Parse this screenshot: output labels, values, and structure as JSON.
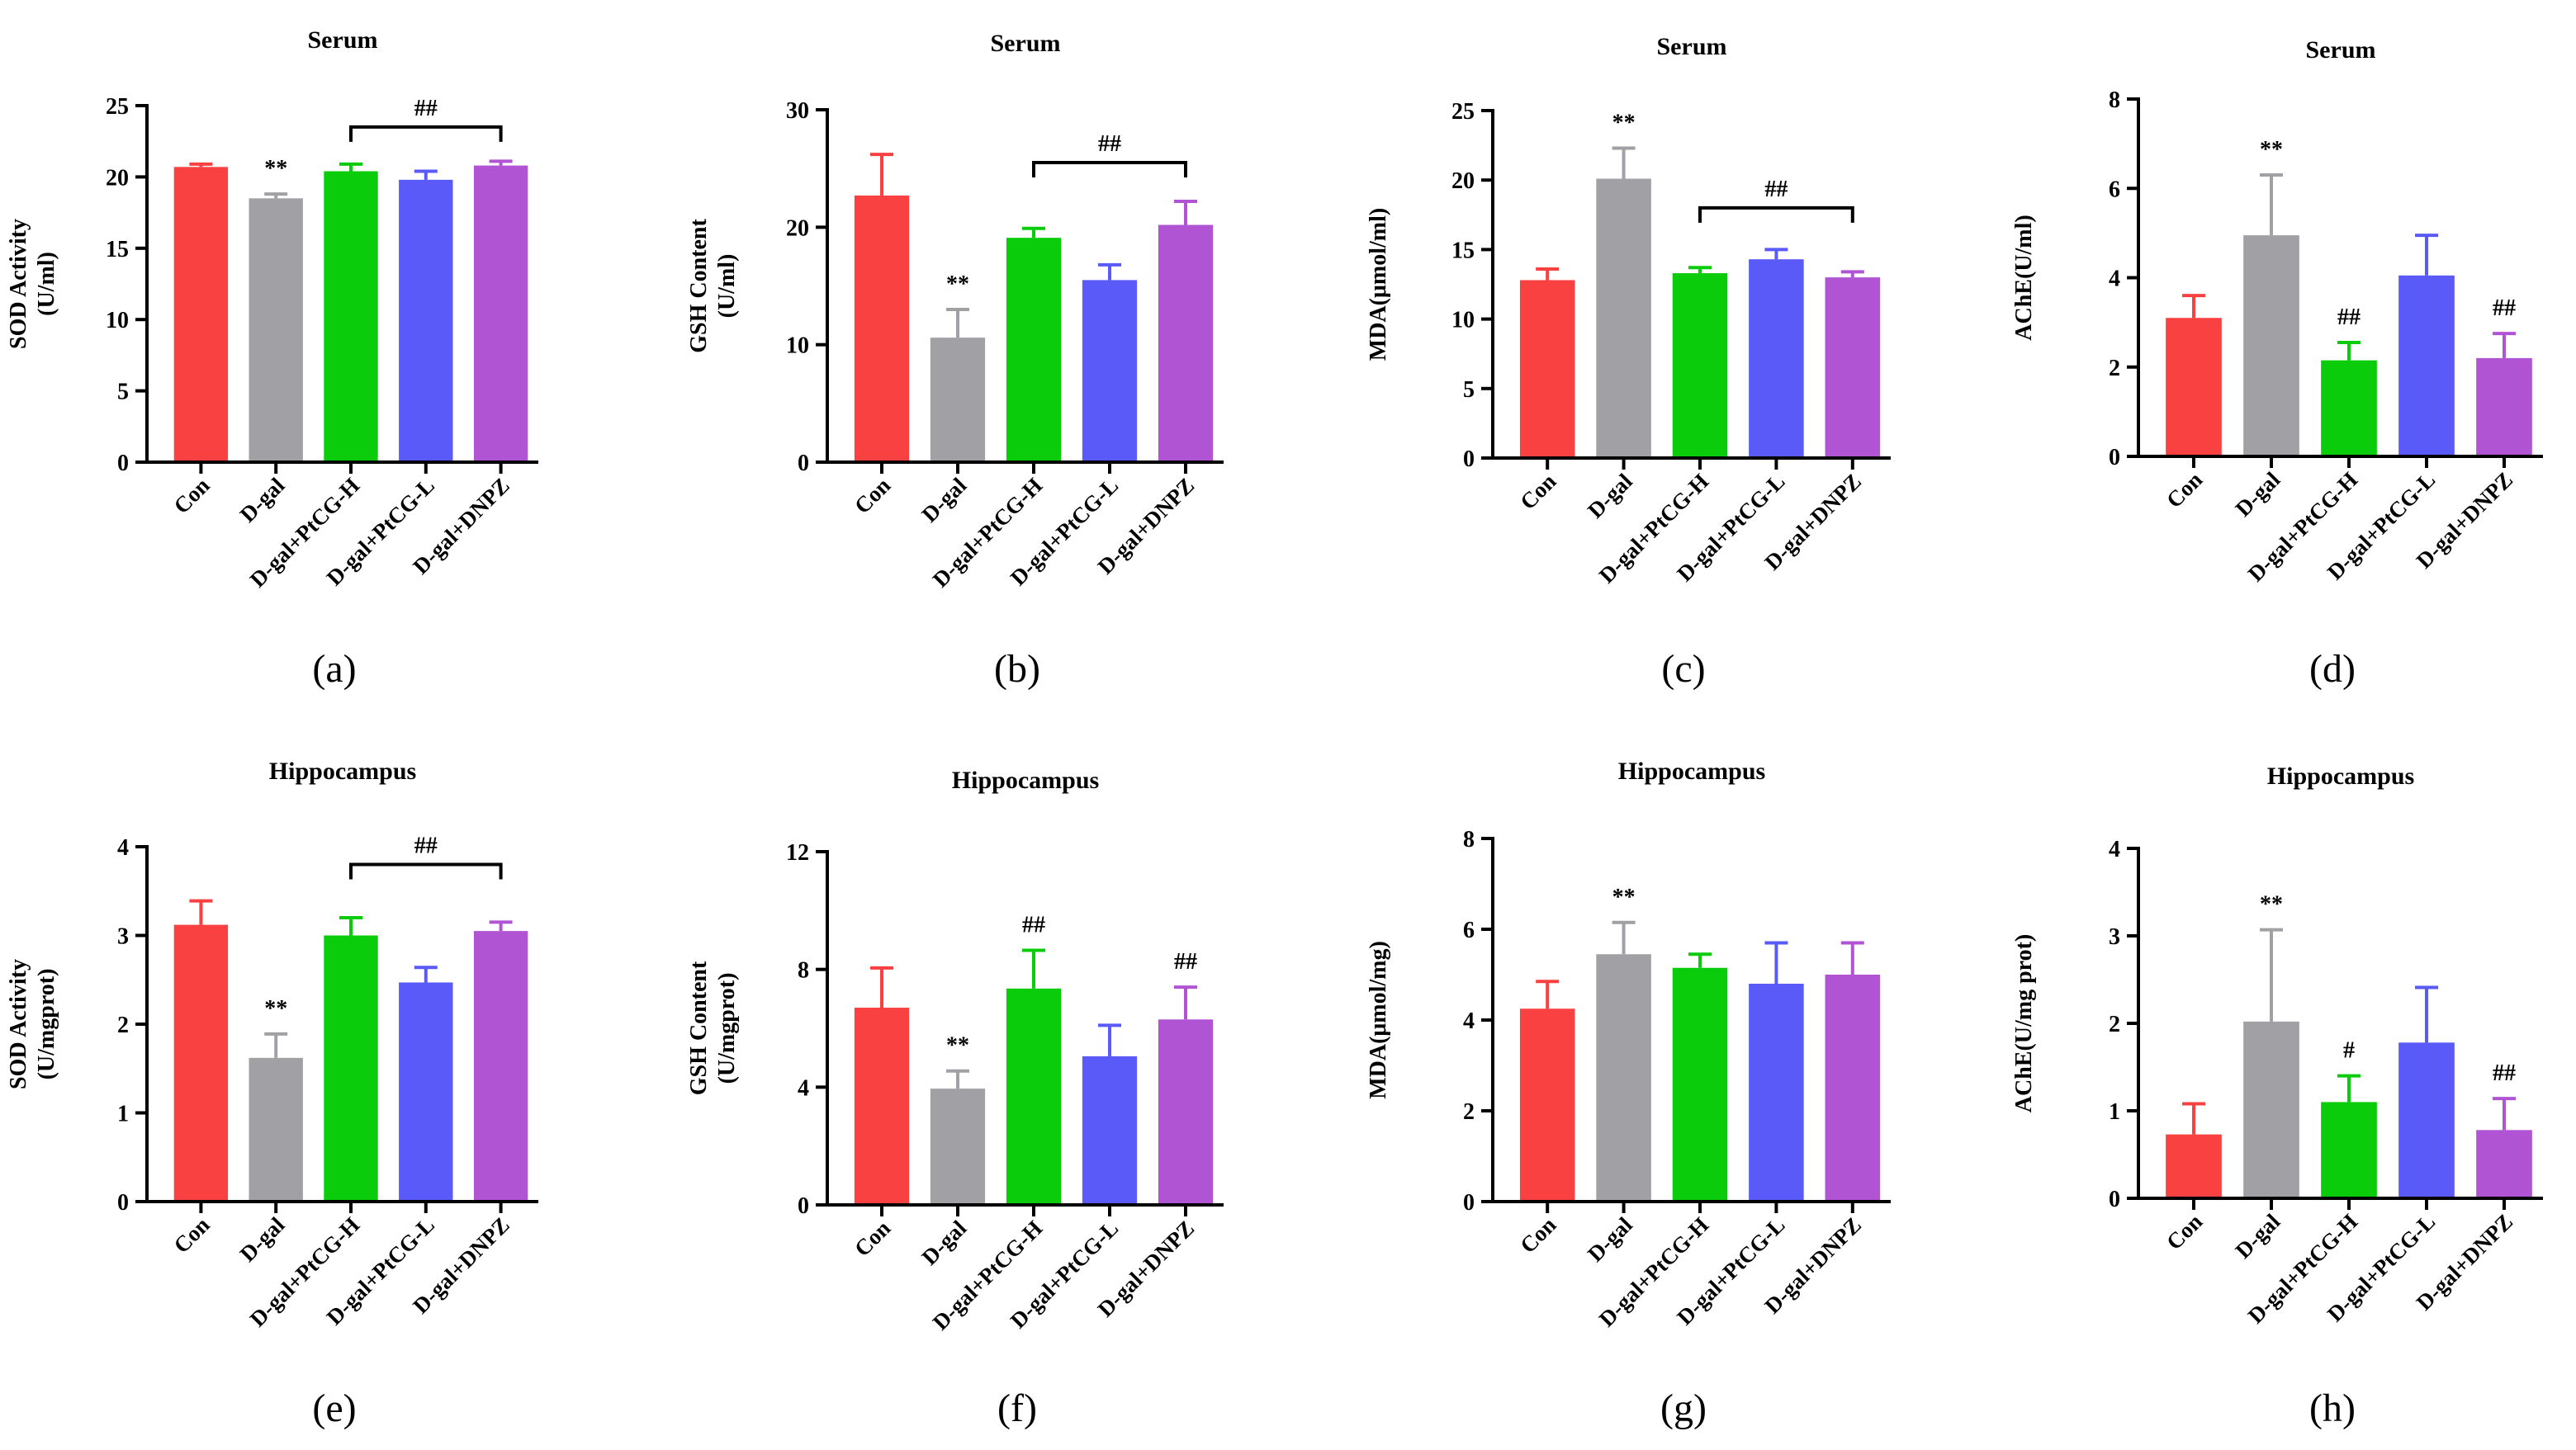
{
  "chart_data": [
    {
      "panel": "(a)",
      "title": "Serum",
      "type": "bar",
      "ylabel": [
        "SOD Activity",
        "(U/ml)"
      ],
      "categories": [
        "Con",
        "D-gal",
        "D-gal+PtCG-H",
        "D-gal+PtCG-L",
        "D-gal+DNPZ"
      ],
      "values": [
        20.7,
        18.5,
        20.4,
        19.8,
        20.8
      ],
      "errors": [
        0.2,
        0.3,
        0.5,
        0.6,
        0.3
      ],
      "ylim": [
        0,
        25
      ],
      "yticks": [
        0,
        5,
        10,
        15,
        20,
        25
      ],
      "marks": [
        {
          "index": 1,
          "text": "**"
        }
      ],
      "bracket": {
        "from": 2,
        "to": 4,
        "value": 23.5,
        "text": "##"
      }
    },
    {
      "panel": "(b)",
      "title": "Serum",
      "type": "bar",
      "ylabel": [
        "GSH Content",
        "(U/ml)"
      ],
      "categories": [
        "Con",
        "D-gal",
        "D-gal+PtCG-H",
        "D-gal+PtCG-L",
        "D-gal+DNPZ"
      ],
      "values": [
        22.7,
        10.6,
        19.1,
        15.5,
        20.2
      ],
      "errors": [
        3.5,
        2.4,
        0.8,
        1.3,
        2.0
      ],
      "ylim": [
        0,
        30
      ],
      "yticks": [
        0,
        10,
        20,
        30
      ],
      "marks": [
        {
          "index": 1,
          "text": "**"
        }
      ],
      "bracket": {
        "from": 2,
        "to": 4,
        "value": 25.5,
        "text": "##"
      }
    },
    {
      "panel": "(c)",
      "title": "Serum",
      "type": "bar",
      "ylabel": [
        "MDA(μmol/ml)"
      ],
      "categories": [
        "Con",
        "D-gal",
        "D-gal+PtCG-H",
        "D-gal+PtCG-L",
        "D-gal+DNPZ"
      ],
      "values": [
        12.8,
        20.1,
        13.3,
        14.3,
        13.0
      ],
      "errors": [
        0.8,
        2.2,
        0.4,
        0.7,
        0.4
      ],
      "ylim": [
        0,
        25
      ],
      "yticks": [
        0,
        5,
        10,
        15,
        20,
        25
      ],
      "marks": [
        {
          "index": 1,
          "text": "**"
        }
      ],
      "bracket": {
        "from": 2,
        "to": 4,
        "value": 18.0,
        "text": "##"
      }
    },
    {
      "panel": "(d)",
      "title": "Serum",
      "type": "bar",
      "ylabel": [
        "AChE(U/ml)"
      ],
      "categories": [
        "Con",
        "D-gal",
        "D-gal+PtCG-H",
        "D-gal+PtCG-L",
        "D-gal+DNPZ"
      ],
      "values": [
        3.1,
        4.95,
        2.15,
        4.05,
        2.2
      ],
      "errors": [
        0.5,
        1.35,
        0.4,
        0.9,
        0.55
      ],
      "ylim": [
        0,
        8
      ],
      "yticks": [
        0,
        2,
        4,
        6,
        8
      ],
      "marks": [
        {
          "index": 1,
          "text": "**"
        },
        {
          "index": 2,
          "text": "##"
        },
        {
          "index": 4,
          "text": "##"
        }
      ],
      "bracket": null
    },
    {
      "panel": "(e)",
      "title": "Hippocampus",
      "type": "bar",
      "ylabel": [
        "SOD Activity",
        "(U/mgprot)"
      ],
      "categories": [
        "Con",
        "D-gal",
        "D-gal+PtCG-H",
        "D-gal+PtCG-L",
        "D-gal+DNPZ"
      ],
      "values": [
        3.12,
        1.62,
        3.0,
        2.47,
        3.05
      ],
      "errors": [
        0.27,
        0.27,
        0.2,
        0.17,
        0.1
      ],
      "ylim": [
        0,
        4
      ],
      "yticks": [
        0,
        1,
        2,
        3,
        4
      ],
      "marks": [
        {
          "index": 1,
          "text": "**"
        }
      ],
      "bracket": {
        "from": 2,
        "to": 4,
        "value": 3.8,
        "text": "##"
      }
    },
    {
      "panel": "(f)",
      "title": "Hippocampus",
      "type": "bar",
      "ylabel": [
        "GSH Content",
        "(U/mgprot)"
      ],
      "categories": [
        "Con",
        "D-gal",
        "D-gal+PtCG-H",
        "D-gal+PtCG-L",
        "D-gal+DNPZ"
      ],
      "values": [
        6.7,
        3.95,
        7.35,
        5.05,
        6.3
      ],
      "errors": [
        1.35,
        0.6,
        1.3,
        1.05,
        1.1
      ],
      "ylim": [
        0,
        12
      ],
      "yticks": [
        0,
        4,
        8,
        12
      ],
      "marks": [
        {
          "index": 1,
          "text": "**"
        },
        {
          "index": 2,
          "text": "##"
        },
        {
          "index": 4,
          "text": "##"
        }
      ],
      "bracket": null
    },
    {
      "panel": "(g)",
      "title": "Hippocampus",
      "type": "bar",
      "ylabel": [
        "MDA(μmol/mg)"
      ],
      "categories": [
        "Con",
        "D-gal",
        "D-gal+PtCG-H",
        "D-gal+PtCG-L",
        "D-gal+DNPZ"
      ],
      "values": [
        4.25,
        5.45,
        5.15,
        4.8,
        5.0
      ],
      "errors": [
        0.6,
        0.7,
        0.3,
        0.9,
        0.7
      ],
      "ylim": [
        0,
        8
      ],
      "yticks": [
        0,
        2,
        4,
        6,
        8
      ],
      "marks": [
        {
          "index": 1,
          "text": "**"
        }
      ],
      "bracket": null
    },
    {
      "panel": "(h)",
      "title": "Hippocampus",
      "type": "bar",
      "ylabel": [
        "AChE(U/mg prot)"
      ],
      "categories": [
        "Con",
        "D-gal",
        "D-gal+PtCG-H",
        "D-gal+PtCG-L",
        "D-gal+DNPZ"
      ],
      "values": [
        0.73,
        2.02,
        1.1,
        1.78,
        0.78
      ],
      "errors": [
        0.35,
        1.05,
        0.3,
        0.63,
        0.36
      ],
      "ylim": [
        0,
        4
      ],
      "yticks": [
        0,
        1,
        2,
        3,
        4
      ],
      "marks": [
        {
          "index": 1,
          "text": "**"
        },
        {
          "index": 2,
          "text": "#"
        },
        {
          "index": 4,
          "text": "##"
        }
      ],
      "bracket": null
    }
  ],
  "colors": {
    "bars": [
      "#fa4141",
      "#a1a1a5",
      "#0acc0a",
      "#5a5af8",
      "#b054d4"
    ],
    "axis": "#000000",
    "background": "#ffffff"
  }
}
